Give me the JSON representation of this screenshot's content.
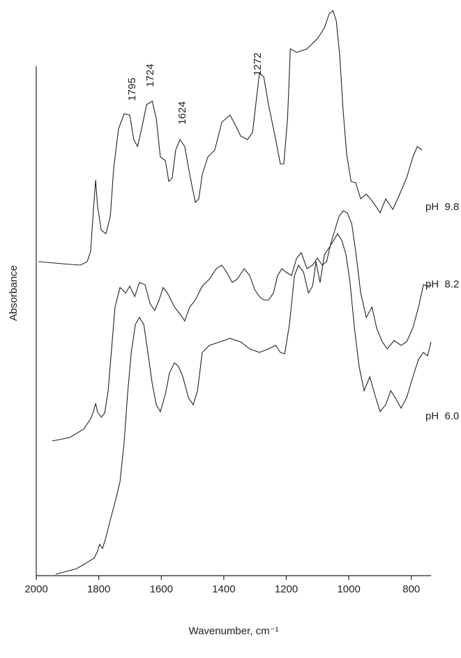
{
  "chart_data": {
    "type": "line",
    "xlabel": "Wavenumber,  cm⁻¹",
    "ylabel": "Absorbance",
    "xlim": [
      2000,
      737
    ],
    "ylim": [
      0,
      815
    ],
    "xticks": [
      2000,
      1800,
      1600,
      1400,
      1200,
      1000,
      800
    ],
    "annotations": [
      "1795",
      "1724",
      "1624",
      "1272"
    ],
    "series": [
      {
        "name": "pH  9.8",
        "color": "#222222",
        "x": [
          1993,
          1915,
          1859,
          1837,
          1826,
          1817,
          1810,
          1804,
          1792,
          1777,
          1763,
          1752,
          1737,
          1719,
          1701,
          1688,
          1676,
          1663,
          1647,
          1629,
          1616,
          1603,
          1587,
          1576,
          1565,
          1554,
          1540,
          1525,
          1509,
          1491,
          1480,
          1469,
          1451,
          1429,
          1406,
          1380,
          1362,
          1346,
          1324,
          1308,
          1295,
          1286,
          1272,
          1257,
          1234,
          1219,
          1208,
          1196,
          1187,
          1167,
          1134,
          1100,
          1078,
          1063,
          1051,
          1040,
          1029,
          1018,
          1007,
          993,
          978,
          962,
          944,
          922,
          900,
          882,
          859,
          837,
          815,
          795,
          781,
          766
        ],
        "values": [
          450,
          447,
          445,
          450,
          465,
          525,
          567,
          530,
          495,
          490,
          515,
          585,
          640,
          662,
          660,
          625,
          615,
          640,
          675,
          680,
          655,
          600,
          595,
          565,
          570,
          610,
          625,
          615,
          575,
          535,
          540,
          575,
          600,
          610,
          650,
          660,
          645,
          630,
          625,
          635,
          685,
          720,
          715,
          675,
          625,
          590,
          590,
          655,
          755,
          750,
          755,
          770,
          785,
          805,
          810,
          795,
          745,
          665,
          605,
          565,
          563,
          540,
          547,
          535,
          520,
          540,
          525,
          547,
          570,
          600,
          615,
          610
        ]
      },
      {
        "name": "pH  8.2",
        "color": "#222222",
        "x": [
          1949,
          1893,
          1848,
          1826,
          1817,
          1810,
          1804,
          1792,
          1781,
          1770,
          1759,
          1748,
          1732,
          1714,
          1701,
          1685,
          1670,
          1652,
          1636,
          1621,
          1607,
          1594,
          1580,
          1558,
          1540,
          1525,
          1509,
          1491,
          1469,
          1446,
          1424,
          1406,
          1391,
          1373,
          1357,
          1335,
          1317,
          1301,
          1286,
          1272,
          1257,
          1241,
          1228,
          1214,
          1201,
          1183,
          1167,
          1152,
          1134,
          1116,
          1100,
          1085,
          1071,
          1058,
          1045,
          1031,
          1018,
          1005,
          991,
          978,
          962,
          944,
          926,
          911,
          893,
          877,
          855,
          833,
          815,
          795,
          777,
          761,
          748,
          737
        ],
        "values": [
          193,
          198,
          210,
          225,
          235,
          247,
          235,
          227,
          233,
          265,
          325,
          385,
          413,
          405,
          415,
          400,
          420,
          417,
          390,
          380,
          395,
          413,
          405,
          385,
          375,
          365,
          385,
          395,
          415,
          425,
          440,
          445,
          435,
          420,
          425,
          440,
          430,
          410,
          400,
          395,
          395,
          405,
          430,
          440,
          435,
          430,
          455,
          463,
          440,
          445,
          455,
          445,
          450,
          475,
          495,
          515,
          523,
          520,
          505,
          465,
          405,
          370,
          385,
          355,
          335,
          325,
          337,
          330,
          335,
          355,
          385,
          417,
          415,
          417
        ]
      },
      {
        "name": "pH  6.0",
        "color": "#222222",
        "x": [
          1938,
          1871,
          1815,
          1804,
          1797,
          1788,
          1777,
          1763,
          1748,
          1732,
          1719,
          1708,
          1696,
          1683,
          1670,
          1656,
          1643,
          1629,
          1616,
          1603,
          1587,
          1574,
          1558,
          1545,
          1531,
          1513,
          1498,
          1484,
          1469,
          1446,
          1413,
          1380,
          1346,
          1317,
          1286,
          1257,
          1234,
          1219,
          1205,
          1190,
          1174,
          1161,
          1145,
          1129,
          1116,
          1105,
          1092,
          1078,
          1063,
          1049,
          1036,
          1022,
          1009,
          996,
          982,
          967,
          951,
          933,
          917,
          900,
          882,
          866,
          851,
          833,
          815,
          795,
          777,
          761,
          748,
          737
        ],
        "values": [
          2,
          10,
          25,
          35,
          45,
          39,
          55,
          80,
          105,
          135,
          190,
          260,
          320,
          360,
          370,
          360,
          320,
          275,
          245,
          235,
          260,
          290,
          305,
          300,
          285,
          255,
          245,
          265,
          320,
          330,
          335,
          340,
          335,
          325,
          320,
          325,
          330,
          320,
          318,
          360,
          430,
          445,
          435,
          405,
          415,
          450,
          420,
          460,
          470,
          480,
          490,
          480,
          460,
          420,
          355,
          300,
          265,
          285,
          260,
          235,
          245,
          265,
          255,
          240,
          255,
          285,
          310,
          320,
          315,
          335
        ]
      }
    ]
  }
}
